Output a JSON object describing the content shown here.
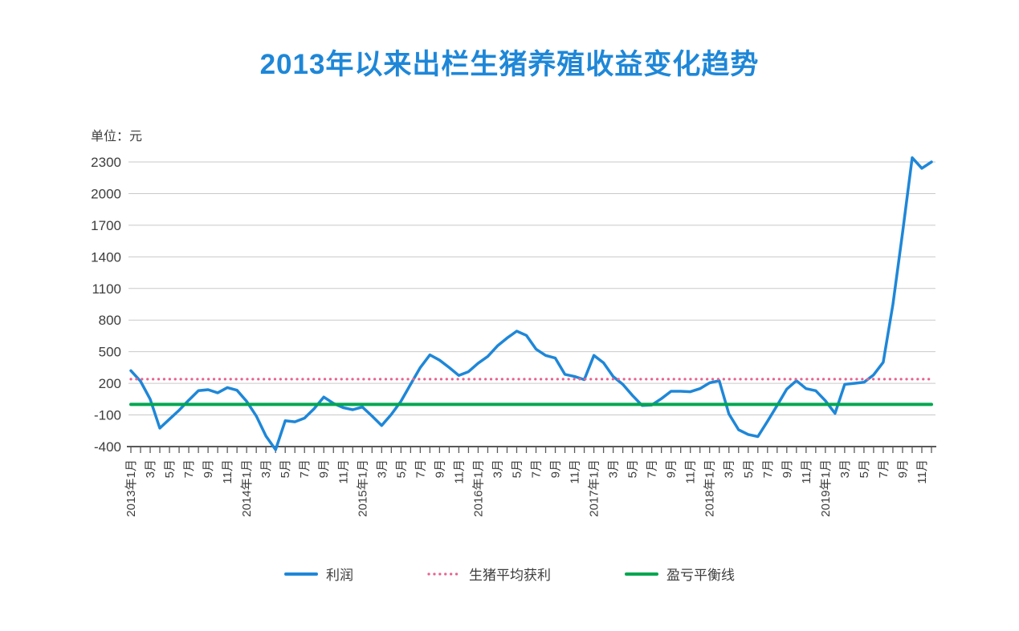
{
  "page": {
    "title": "2013年以来出栏生猪养殖收益变化趋势",
    "unit_label": "单位：元"
  },
  "colors": {
    "title": "#1e87d8",
    "profit_line": "#1e87d8",
    "avg_profit_line": "#e8638f",
    "breakeven_line": "#00a650",
    "grid": "#c9c9c9",
    "axis": "#595959",
    "text": "#3d3d3d"
  },
  "chart_data": {
    "type": "line",
    "title": "2013年以来出栏生猪养殖收益变化趋势",
    "ylabel": "单位：元",
    "xlabel": "",
    "ylim": [
      -400,
      2300
    ],
    "yticks": [
      2300,
      2000,
      1700,
      1400,
      1100,
      800,
      500,
      200,
      -100,
      -400
    ],
    "grid": "horizontal",
    "legend_position": "bottom",
    "n_points": 84,
    "x_label_every": 2,
    "x_tick_labels": [
      "2013年1月",
      "3月",
      "5月",
      "7月",
      "9月",
      "11月",
      "2014年1月",
      "3月",
      "5月",
      "7月",
      "9月",
      "11月",
      "2015年1月",
      "3月",
      "5月",
      "7月",
      "9月",
      "11月",
      "2016年1月",
      "3月",
      "5月",
      "7月",
      "9月",
      "11月",
      "2017年1月",
      "3月",
      "5月",
      "7月",
      "9月",
      "11月",
      "2018年1月",
      "3月",
      "5月",
      "7月",
      "9月",
      "11月",
      "2019年1月",
      "3月",
      "5月",
      "7月",
      "9月",
      "11月"
    ],
    "series": [
      {
        "name": "利润",
        "kind": "line",
        "style": "solid",
        "color": "#1e87d8",
        "values": [
          320,
          220,
          50,
          -225,
          -140,
          -55,
          40,
          130,
          140,
          110,
          160,
          135,
          30,
          -110,
          -300,
          -430,
          -155,
          -165,
          -130,
          -40,
          70,
          10,
          -30,
          -50,
          -25,
          -110,
          -200,
          -95,
          30,
          190,
          350,
          470,
          420,
          350,
          275,
          310,
          390,
          455,
          555,
          630,
          695,
          655,
          525,
          465,
          440,
          285,
          265,
          235,
          465,
          395,
          265,
          190,
          85,
          -10,
          -5,
          55,
          125,
          125,
          120,
          150,
          205,
          225,
          -90,
          -240,
          -285,
          -305,
          -160,
          -10,
          145,
          225,
          150,
          130,
          35,
          -85,
          190,
          200,
          210,
          280,
          400,
          950,
          1630,
          2340,
          2240,
          2300
        ]
      },
      {
        "name": "生猪平均获利",
        "kind": "hline",
        "style": "dotted",
        "color": "#e8638f",
        "value": 240
      },
      {
        "name": "盈亏平衡线",
        "kind": "hline",
        "style": "solid",
        "color": "#00a650",
        "value": 0
      }
    ],
    "legend": [
      "利润",
      "生猪平均获利",
      "盈亏平衡线"
    ]
  }
}
